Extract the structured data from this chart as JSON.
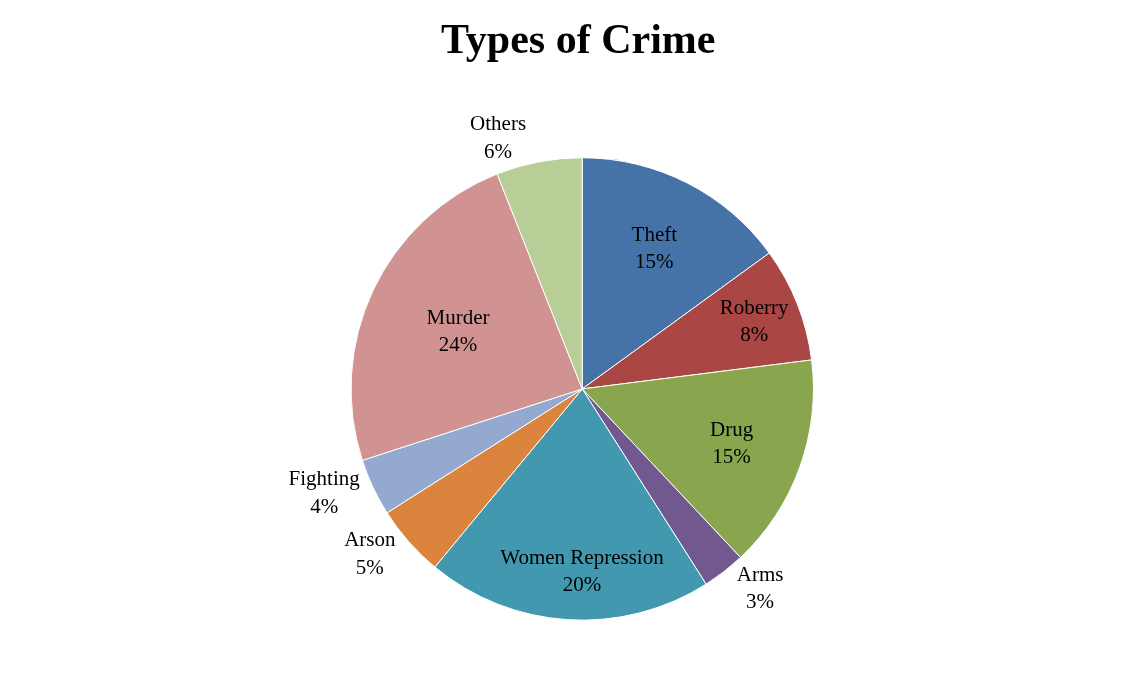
{
  "chart_data": {
    "type": "pie",
    "title": "Types of Crime",
    "categories": [
      "Theft",
      "Roberry",
      "Drug",
      "Arms",
      "Women Repression",
      "Arson",
      "Fighting",
      "Murder",
      "Others"
    ],
    "values": [
      15,
      8,
      15,
      3,
      20,
      5,
      4,
      24,
      6
    ],
    "value_labels": [
      "15%",
      "8%",
      "15%",
      "3%",
      "20%",
      "5%",
      "4%",
      "24%",
      "6%"
    ],
    "colors": [
      "#4572a7",
      "#aa4643",
      "#89a54e",
      "#71588f",
      "#4198af",
      "#db843d",
      "#93a9cf",
      "#d19392",
      "#b9cd96"
    ],
    "legend": false
  }
}
